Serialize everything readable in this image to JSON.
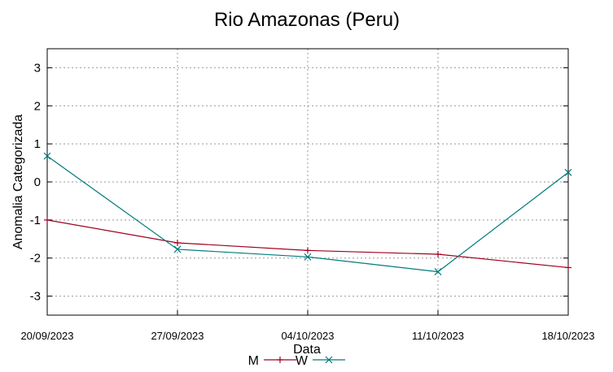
{
  "chart_data": {
    "type": "line",
    "title": "Rio Amazonas (Peru)",
    "xlabel": "Data",
    "ylabel": "Anomalia Categorizada",
    "ylim": [
      -3.5,
      3.5
    ],
    "yticks": [
      -3,
      -2,
      -1,
      0,
      1,
      2,
      3
    ],
    "ytick_labels": [
      "-3",
      "-2",
      "-1",
      "0",
      "1",
      "2",
      "3"
    ],
    "categories": [
      "20/09/2023",
      "27/09/2023",
      "04/10/2023",
      "11/10/2023",
      "18/10/2023"
    ],
    "grid": true,
    "legend_position": "bottom-center",
    "series": [
      {
        "name": "M",
        "color": "#a0001e",
        "marker": "plus",
        "values": [
          -1.0,
          -1.6,
          -1.8,
          -1.9,
          -2.25
        ]
      },
      {
        "name": "W",
        "color": "#007a7a",
        "marker": "cross",
        "values": [
          0.68,
          -1.77,
          -1.97,
          -2.36,
          0.25
        ]
      }
    ]
  }
}
